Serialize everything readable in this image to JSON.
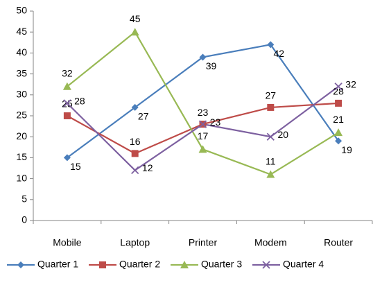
{
  "chart_data": {
    "type": "line",
    "categories": [
      "Mobile",
      "Laptop",
      "Printer",
      "Modem",
      "Router"
    ],
    "series": [
      {
        "name": "Quarter 1",
        "color": "#4a7ebb",
        "marker": "diamond",
        "values": [
          15,
          27,
          39,
          42,
          19
        ]
      },
      {
        "name": "Quarter 2",
        "color": "#be4b48",
        "marker": "square",
        "values": [
          25,
          16,
          23,
          27,
          28
        ]
      },
      {
        "name": "Quarter 3",
        "color": "#98b954",
        "marker": "triangle",
        "values": [
          32,
          45,
          17,
          11,
          21
        ]
      },
      {
        "name": "Quarter 4",
        "color": "#7d60a0",
        "marker": "x",
        "values": [
          28,
          12,
          23,
          20,
          32
        ]
      }
    ],
    "ylim": [
      0,
      50
    ],
    "yticks": [
      0,
      5,
      10,
      15,
      20,
      25,
      30,
      35,
      40,
      45,
      50
    ],
    "grid": false,
    "legend": "bottom",
    "data_labels": true
  }
}
